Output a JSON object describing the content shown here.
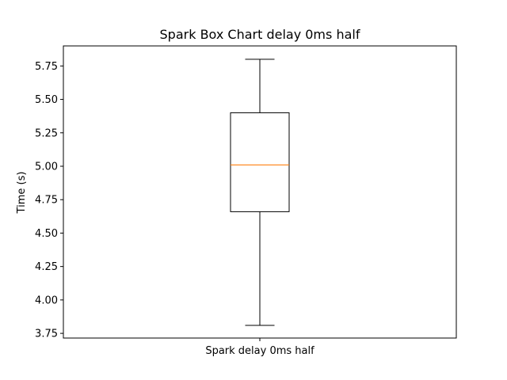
{
  "chart_data": {
    "type": "box",
    "title": "Spark Box Chart delay 0ms half",
    "xlabel": "",
    "ylabel": "Time (s)",
    "categories": [
      "Spark delay 0ms half"
    ],
    "ylim": [
      3.715,
      5.9
    ],
    "yticks": [
      3.75,
      4.0,
      4.25,
      4.5,
      4.75,
      5.0,
      5.25,
      5.5,
      5.75
    ],
    "ytick_labels": [
      "3.75",
      "4.00",
      "4.25",
      "4.50",
      "4.75",
      "5.00",
      "5.25",
      "5.50",
      "5.75"
    ],
    "boxes": [
      {
        "name": "Spark delay 0ms half",
        "whisker_low": 3.81,
        "q1": 4.66,
        "median": 5.01,
        "q3": 5.4,
        "whisker_high": 5.8
      }
    ],
    "colors": {
      "box": "#000000",
      "median": "#ff7f0e",
      "axes": "#000000",
      "background": "#ffffff"
    },
    "grid": false,
    "legend": "none"
  }
}
